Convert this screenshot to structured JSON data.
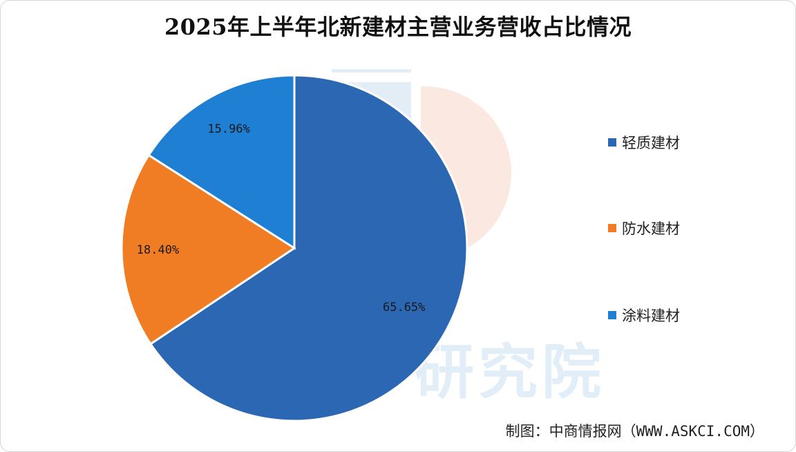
{
  "colors": {
    "light_weight": "#2b67b3",
    "waterproof": "#f07c23",
    "coating": "#1f7fd2"
  },
  "watermark": {
    "text": "研究院"
  },
  "source": "制图：中商情报网（WWW.ASKCI.COM）",
  "chart_data": {
    "type": "pie",
    "title": "2025年上半年北新建材主营业务营收占比情况",
    "slices": [
      {
        "label": "轻质建材",
        "value": 65.65,
        "display": "65.65%",
        "color": "#2b67b3"
      },
      {
        "label": "防水建材",
        "value": 18.4,
        "display": "18.40%",
        "color": "#f07c23"
      },
      {
        "label": "涂料建材",
        "value": 15.96,
        "display": "15.96%",
        "color": "#1f7fd2"
      }
    ],
    "legend_position": "right"
  }
}
